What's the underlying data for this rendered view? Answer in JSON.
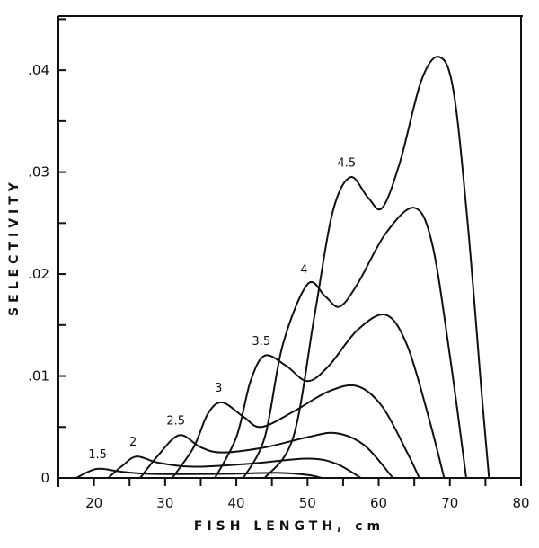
{
  "chart_data": {
    "type": "line",
    "title": "",
    "xlabel": "FISH LENGTH, cm",
    "ylabel": "SELECTIVITY",
    "xlim": [
      15,
      80
    ],
    "ylim": [
      0,
      0.0453
    ],
    "xticks": [
      20,
      30,
      40,
      50,
      60,
      70,
      80
    ],
    "xtick_labels": [
      "20",
      "30",
      "40",
      "50",
      "60",
      "70",
      "80"
    ],
    "yticks": [
      0,
      0.01,
      0.02,
      0.03,
      0.04
    ],
    "ytick_labels": [
      "0",
      ".01",
      ".02",
      ".03",
      ".04"
    ],
    "grid": false,
    "line_color": "#111111",
    "series": [
      {
        "name": "1.5",
        "x": [
          17.5,
          19.5,
          21,
          24,
          28,
          38,
          46,
          50,
          52
        ],
        "y": [
          0,
          0.0007,
          0.0009,
          0.0006,
          0.0004,
          0.0004,
          0.0005,
          0.0003,
          0
        ]
      },
      {
        "name": "2",
        "x": [
          22,
          24,
          26,
          29,
          34,
          42,
          50,
          54,
          57.5
        ],
        "y": [
          0,
          0.0012,
          0.0021,
          0.0015,
          0.0011,
          0.0014,
          0.0019,
          0.0014,
          0
        ]
      },
      {
        "name": "2.5",
        "x": [
          26.5,
          29,
          32,
          35,
          38,
          44,
          50,
          54,
          58,
          62
        ],
        "y": [
          0,
          0.0022,
          0.0042,
          0.003,
          0.0025,
          0.003,
          0.004,
          0.0044,
          0.0032,
          0
        ]
      },
      {
        "name": "3",
        "x": [
          31,
          34,
          36,
          38,
          41,
          43.5,
          48,
          53,
          57,
          60.5,
          64,
          65.7
        ],
        "y": [
          0,
          0.003,
          0.0063,
          0.0074,
          0.006,
          0.005,
          0.0065,
          0.0085,
          0.009,
          0.007,
          0.0025,
          0
        ]
      },
      {
        "name": "3.5",
        "x": [
          37,
          40,
          42,
          44,
          47,
          50,
          53,
          57,
          61,
          64,
          67,
          69.2
        ],
        "y": [
          0,
          0.004,
          0.0095,
          0.012,
          0.011,
          0.0095,
          0.011,
          0.0145,
          0.016,
          0.013,
          0.006,
          0
        ]
      },
      {
        "name": "4",
        "x": [
          41,
          44,
          46.5,
          50,
          52.5,
          54.5,
          57,
          61,
          65,
          67.5,
          70,
          72.3
        ],
        "y": [
          0,
          0.004,
          0.013,
          0.019,
          0.0178,
          0.0168,
          0.019,
          0.024,
          0.0265,
          0.023,
          0.012,
          0
        ]
      },
      {
        "name": "4.5",
        "x": [
          44,
          48,
          51,
          53.5,
          56,
          58.5,
          60.5,
          63,
          66,
          68.5,
          70.5,
          72.5,
          74.5,
          75.5
        ],
        "y": [
          0,
          0.004,
          0.016,
          0.026,
          0.0295,
          0.0275,
          0.0265,
          0.031,
          0.039,
          0.0413,
          0.038,
          0.025,
          0.008,
          0
        ]
      }
    ]
  }
}
